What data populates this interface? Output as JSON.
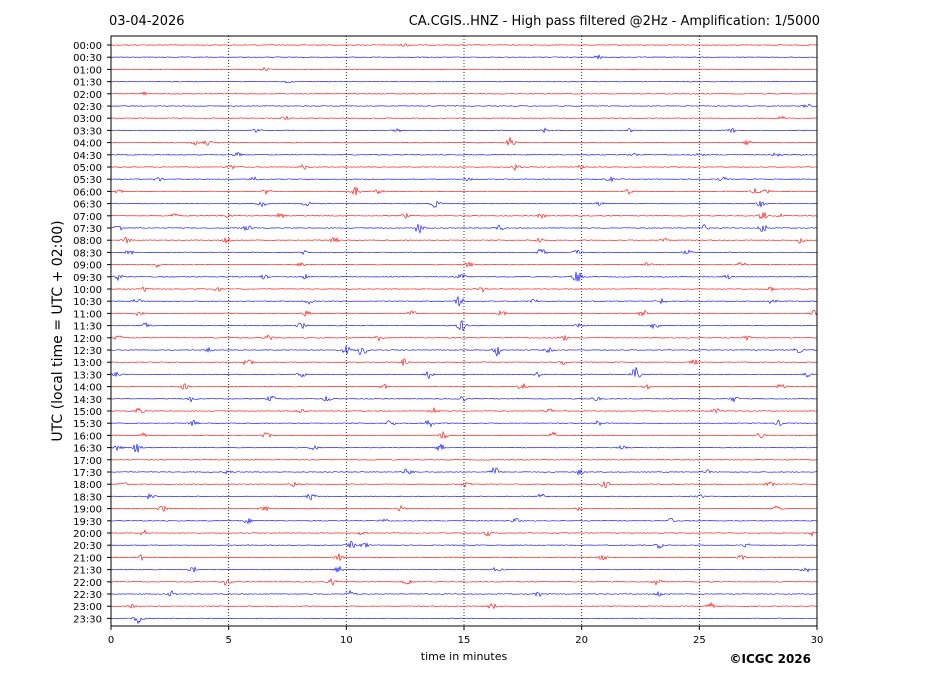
{
  "header": {
    "date": "03-04-2026",
    "station_title": "CA.CGIS..HNZ - High pass filtered @2Hz - Amplification: 1/5000"
  },
  "footer": {
    "copyright": "©ICGC 2026"
  },
  "chart_data": {
    "type": "line",
    "title": "CA.CGIS..HNZ - High pass filtered @2Hz - Amplification: 1/5000",
    "xlabel": "time in minutes",
    "ylabel": "UTC (local time = UTC + 02:00)",
    "xlim": [
      0,
      30
    ],
    "x_ticks": [
      0,
      5,
      10,
      15,
      20,
      25,
      30
    ],
    "x_tick_labels": [
      "0",
      "5",
      "10",
      "15",
      "20",
      "25",
      "30"
    ],
    "grid": "vertical dotted lines at 5-minute intervals",
    "colors": {
      "red": "#ff0000",
      "blue": "#0000ff"
    },
    "series": [
      {
        "label": "00:00",
        "color": "red",
        "events": [
          [
            12.5,
            0.3
          ]
        ]
      },
      {
        "label": "00:30",
        "color": "blue",
        "events": [
          [
            20.7,
            0.3
          ]
        ]
      },
      {
        "label": "01:00",
        "color": "red",
        "events": [
          [
            6.5,
            0.25
          ]
        ]
      },
      {
        "label": "01:30",
        "color": "blue",
        "events": [
          [
            7.5,
            0.2
          ]
        ]
      },
      {
        "label": "02:00",
        "color": "red",
        "events": [
          [
            1.4,
            0.3
          ]
        ]
      },
      {
        "label": "02:30",
        "color": "blue",
        "events": [
          [
            29.6,
            0.35
          ]
        ]
      },
      {
        "label": "03:00",
        "color": "red",
        "events": [
          [
            7.4,
            0.3
          ],
          [
            28.5,
            0.3
          ]
        ]
      },
      {
        "label": "03:30",
        "color": "blue",
        "events": [
          [
            6.2,
            0.3
          ],
          [
            12.2,
            0.25
          ],
          [
            18.4,
            0.35
          ],
          [
            22,
            0.3
          ],
          [
            26.4,
            0.35
          ]
        ]
      },
      {
        "label": "04:00",
        "color": "red",
        "events": [
          [
            3.6,
            0.4
          ],
          [
            4.1,
            0.4
          ],
          [
            17.0,
            0.9
          ],
          [
            27.0,
            0.4
          ]
        ]
      },
      {
        "label": "04:30",
        "color": "blue",
        "events": [
          [
            5.4,
            0.35
          ],
          [
            22.2,
            0.3
          ],
          [
            25.0,
            0.35
          ],
          [
            28.3,
            0.4
          ]
        ]
      },
      {
        "label": "05:00",
        "color": "red",
        "events": [
          [
            5.1,
            0.4
          ],
          [
            8.2,
            0.4
          ],
          [
            17.2,
            0.5
          ],
          [
            20.0,
            0.35
          ]
        ]
      },
      {
        "label": "05:30",
        "color": "blue",
        "events": [
          [
            2.0,
            0.35
          ],
          [
            6.1,
            0.35
          ],
          [
            15.2,
            0.3
          ],
          [
            21.2,
            0.4
          ],
          [
            26.0,
            0.35
          ]
        ]
      },
      {
        "label": "06:00",
        "color": "red",
        "events": [
          [
            0.3,
            0.35
          ],
          [
            6.6,
            0.4
          ],
          [
            10.4,
            0.7
          ],
          [
            11.4,
            0.45
          ],
          [
            22.0,
            0.4
          ],
          [
            27.4,
            0.5
          ],
          [
            27.8,
            0.5
          ]
        ]
      },
      {
        "label": "06:30",
        "color": "blue",
        "events": [
          [
            6.4,
            0.6
          ],
          [
            8.3,
            0.4
          ],
          [
            13.8,
            0.7
          ],
          [
            20.8,
            0.45
          ],
          [
            27.6,
            0.6
          ]
        ]
      },
      {
        "label": "07:00",
        "color": "red",
        "events": [
          [
            2.7,
            0.45
          ],
          [
            4.9,
            0.4
          ],
          [
            7.2,
            0.45
          ],
          [
            12.5,
            0.4
          ],
          [
            18.3,
            0.4
          ],
          [
            27.7,
            0.7
          ],
          [
            28.5,
            0.4
          ]
        ]
      },
      {
        "label": "07:30",
        "color": "blue",
        "events": [
          [
            0.3,
            0.6
          ],
          [
            5.8,
            0.5
          ],
          [
            13.1,
            0.9
          ],
          [
            16.5,
            0.5
          ],
          [
            25.2,
            0.5
          ],
          [
            27.7,
            0.8
          ]
        ]
      },
      {
        "label": "08:00",
        "color": "red",
        "events": [
          [
            0.7,
            0.5
          ],
          [
            4.9,
            0.6
          ],
          [
            9.5,
            0.45
          ],
          [
            18.2,
            0.45
          ],
          [
            23.5,
            0.4
          ],
          [
            29.3,
            0.5
          ]
        ]
      },
      {
        "label": "08:30",
        "color": "blue",
        "events": [
          [
            0.8,
            0.45
          ],
          [
            8.3,
            0.5
          ],
          [
            18.3,
            0.7
          ],
          [
            19.8,
            0.6
          ],
          [
            24.5,
            0.4
          ]
        ]
      },
      {
        "label": "09:00",
        "color": "red",
        "events": [
          [
            2.0,
            0.45
          ],
          [
            8.1,
            0.45
          ],
          [
            15.2,
            0.4
          ],
          [
            22.8,
            0.45
          ],
          [
            26.8,
            0.4
          ]
        ]
      },
      {
        "label": "09:30",
        "color": "blue",
        "events": [
          [
            0.3,
            0.5
          ],
          [
            6.5,
            0.45
          ],
          [
            8.3,
            0.4
          ],
          [
            14.9,
            0.45
          ],
          [
            19.8,
            1.2
          ],
          [
            26.2,
            0.45
          ]
        ]
      },
      {
        "label": "10:00",
        "color": "red",
        "events": [
          [
            1.5,
            0.55
          ],
          [
            4.5,
            0.4
          ],
          [
            15.8,
            0.45
          ],
          [
            28.0,
            0.45
          ]
        ]
      },
      {
        "label": "10:30",
        "color": "blue",
        "events": [
          [
            1.1,
            0.45
          ],
          [
            8.4,
            0.5
          ],
          [
            14.8,
            0.9
          ],
          [
            18.0,
            0.4
          ],
          [
            23.4,
            0.5
          ],
          [
            28.1,
            0.45
          ]
        ]
      },
      {
        "label": "11:00",
        "color": "red",
        "events": [
          [
            1.2,
            0.4
          ],
          [
            8.3,
            0.45
          ],
          [
            12.8,
            0.5
          ],
          [
            16.6,
            0.45
          ],
          [
            22.6,
            0.6
          ],
          [
            29.9,
            0.9
          ]
        ]
      },
      {
        "label": "11:30",
        "color": "blue",
        "events": [
          [
            1.5,
            0.45
          ],
          [
            8.1,
            0.5
          ],
          [
            14.9,
            1.0
          ],
          [
            19.9,
            0.4
          ],
          [
            23.1,
            0.5
          ]
        ]
      },
      {
        "label": "12:00",
        "color": "red",
        "events": [
          [
            0.3,
            0.4
          ],
          [
            6.7,
            0.4
          ],
          [
            11.4,
            0.5
          ],
          [
            19.2,
            0.6
          ],
          [
            27.0,
            0.45
          ]
        ]
      },
      {
        "label": "12:30",
        "color": "blue",
        "events": [
          [
            4.2,
            0.45
          ],
          [
            10.0,
            0.7
          ],
          [
            10.7,
            1.3
          ],
          [
            16.4,
            1.0
          ],
          [
            18.6,
            0.4
          ],
          [
            29.2,
            0.5
          ]
        ]
      },
      {
        "label": "13:00",
        "color": "red",
        "events": [
          [
            5.8,
            0.8
          ],
          [
            12.4,
            0.6
          ],
          [
            19.2,
            0.5
          ],
          [
            24.8,
            0.4
          ]
        ]
      },
      {
        "label": "13:30",
        "color": "blue",
        "events": [
          [
            0.2,
            0.4
          ],
          [
            8.1,
            0.45
          ],
          [
            13.5,
            0.6
          ],
          [
            18.1,
            0.45
          ],
          [
            22.3,
            1.1
          ],
          [
            29.6,
            0.4
          ]
        ]
      },
      {
        "label": "14:00",
        "color": "red",
        "events": [
          [
            3.1,
            0.45
          ],
          [
            11.6,
            0.4
          ],
          [
            17.5,
            0.7
          ],
          [
            22.8,
            0.4
          ],
          [
            28.5,
            0.6
          ]
        ]
      },
      {
        "label": "14:30",
        "color": "blue",
        "events": [
          [
            3.4,
            0.45
          ],
          [
            6.8,
            0.5
          ],
          [
            9.2,
            0.5
          ],
          [
            14.9,
            0.5
          ],
          [
            20.6,
            0.45
          ],
          [
            26.5,
            0.45
          ]
        ]
      },
      {
        "label": "15:00",
        "color": "red",
        "events": [
          [
            1.2,
            0.6
          ],
          [
            8.1,
            0.45
          ],
          [
            13.7,
            0.7
          ],
          [
            18.6,
            0.45
          ],
          [
            25.7,
            0.5
          ]
        ]
      },
      {
        "label": "15:30",
        "color": "blue",
        "events": [
          [
            3.5,
            0.45
          ],
          [
            11.9,
            0.6
          ],
          [
            13.5,
            0.8
          ],
          [
            20.7,
            0.45
          ],
          [
            28.4,
            0.45
          ]
        ]
      },
      {
        "label": "16:00",
        "color": "red",
        "events": [
          [
            1.3,
            0.45
          ],
          [
            6.6,
            0.45
          ],
          [
            14.1,
            0.7
          ],
          [
            18.8,
            0.5
          ],
          [
            27.6,
            0.5
          ]
        ]
      },
      {
        "label": "16:30",
        "color": "blue",
        "events": [
          [
            0.3,
            0.5
          ],
          [
            1.1,
            0.8
          ],
          [
            8.6,
            0.5
          ],
          [
            14.0,
            0.6
          ],
          [
            21.7,
            0.4
          ]
        ]
      },
      {
        "label": "17:00",
        "color": "red",
        "events": []
      },
      {
        "label": "17:30",
        "color": "blue",
        "events": [
          [
            5.0,
            0.35
          ],
          [
            12.6,
            0.6
          ],
          [
            16.3,
            0.8
          ],
          [
            19.9,
            0.45
          ],
          [
            25.3,
            0.4
          ]
        ]
      },
      {
        "label": "18:00",
        "color": "red",
        "events": [
          [
            0.5,
            0.4
          ],
          [
            7.8,
            0.4
          ],
          [
            15.1,
            0.45
          ],
          [
            21.0,
            0.6
          ],
          [
            28.0,
            0.4
          ]
        ]
      },
      {
        "label": "18:30",
        "color": "blue",
        "events": [
          [
            1.7,
            0.6
          ],
          [
            8.5,
            0.6
          ],
          [
            18.3,
            0.7
          ],
          [
            25.0,
            0.4
          ]
        ]
      },
      {
        "label": "19:00",
        "color": "red",
        "events": [
          [
            2.2,
            0.5
          ],
          [
            6.5,
            0.5
          ],
          [
            12.3,
            0.45
          ],
          [
            19.8,
            0.45
          ],
          [
            28.3,
            0.5
          ]
        ]
      },
      {
        "label": "19:30",
        "color": "blue",
        "events": [
          [
            5.8,
            0.45
          ],
          [
            11.6,
            0.45
          ],
          [
            17.2,
            0.45
          ],
          [
            23.8,
            0.4
          ]
        ]
      },
      {
        "label": "20:00",
        "color": "red",
        "events": [
          [
            1.4,
            0.45
          ],
          [
            10.7,
            0.4
          ],
          [
            16.0,
            0.45
          ],
          [
            29.8,
            0.5
          ]
        ]
      },
      {
        "label": "20:30",
        "color": "blue",
        "events": [
          [
            10.2,
            0.6
          ],
          [
            10.8,
            0.5
          ],
          [
            23.3,
            0.45
          ],
          [
            27.0,
            0.4
          ]
        ]
      },
      {
        "label": "21:00",
        "color": "red",
        "events": [
          [
            1.3,
            0.4
          ],
          [
            9.7,
            0.6
          ],
          [
            20.9,
            0.5
          ],
          [
            26.8,
            0.4
          ]
        ]
      },
      {
        "label": "21:30",
        "color": "blue",
        "events": [
          [
            3.5,
            0.45
          ],
          [
            9.7,
            0.6
          ],
          [
            16.4,
            0.45
          ],
          [
            29.5,
            0.5
          ]
        ]
      },
      {
        "label": "22:00",
        "color": "red",
        "events": [
          [
            4.9,
            0.6
          ],
          [
            9.4,
            0.5
          ],
          [
            12.6,
            0.5
          ],
          [
            23.2,
            0.6
          ]
        ]
      },
      {
        "label": "22:30",
        "color": "blue",
        "events": [
          [
            2.6,
            0.45
          ],
          [
            10.2,
            0.55
          ],
          [
            18.2,
            0.45
          ],
          [
            23.3,
            0.45
          ]
        ]
      },
      {
        "label": "23:00",
        "color": "red",
        "events": [
          [
            0.9,
            0.3
          ],
          [
            16.2,
            0.5
          ],
          [
            25.4,
            0.8
          ]
        ]
      },
      {
        "label": "23:30",
        "color": "blue",
        "events": [
          [
            1.2,
            1.0
          ]
        ]
      }
    ]
  }
}
